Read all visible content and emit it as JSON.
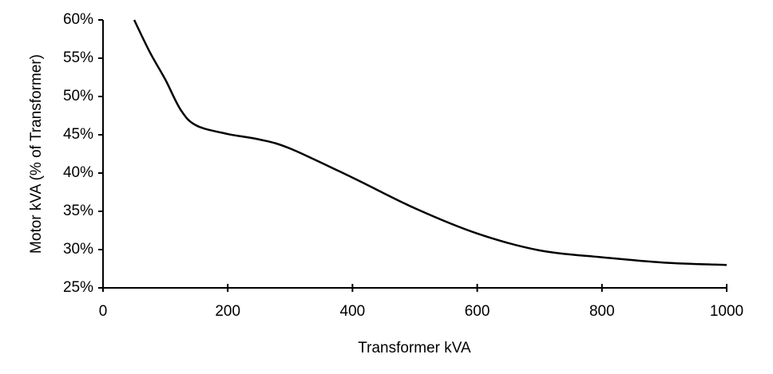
{
  "chart_data": {
    "type": "line",
    "x_label": "Transformer kVA",
    "y_label": "Motor kVA (% of Transformer)",
    "x": [
      50,
      75,
      100,
      125,
      150,
      200,
      250,
      300,
      400,
      500,
      600,
      700,
      800,
      900,
      1000
    ],
    "series": [
      {
        "name": "Motor kVA",
        "color": "#000000",
        "values": [
          60,
          55.8,
          52.2,
          48.2,
          46.2,
          45.1,
          44.4,
          43.2,
          39.4,
          35.4,
          32.1,
          29.9,
          29.0,
          28.3,
          28.0
        ]
      }
    ],
    "xlim": [
      0,
      1000
    ],
    "xticks": [
      0,
      200,
      400,
      600,
      800,
      1000
    ],
    "ylim": [
      25,
      60
    ],
    "yticks": [
      {
        "value": 25,
        "label": "25%"
      },
      {
        "value": 30,
        "label": "30%"
      },
      {
        "value": 35,
        "label": "35%"
      },
      {
        "value": 40,
        "label": "40%"
      },
      {
        "value": 45,
        "label": "45%"
      },
      {
        "value": 50,
        "label": "50%"
      },
      {
        "value": 55,
        "label": "55%"
      },
      {
        "value": 60,
        "label": "60%"
      }
    ]
  }
}
